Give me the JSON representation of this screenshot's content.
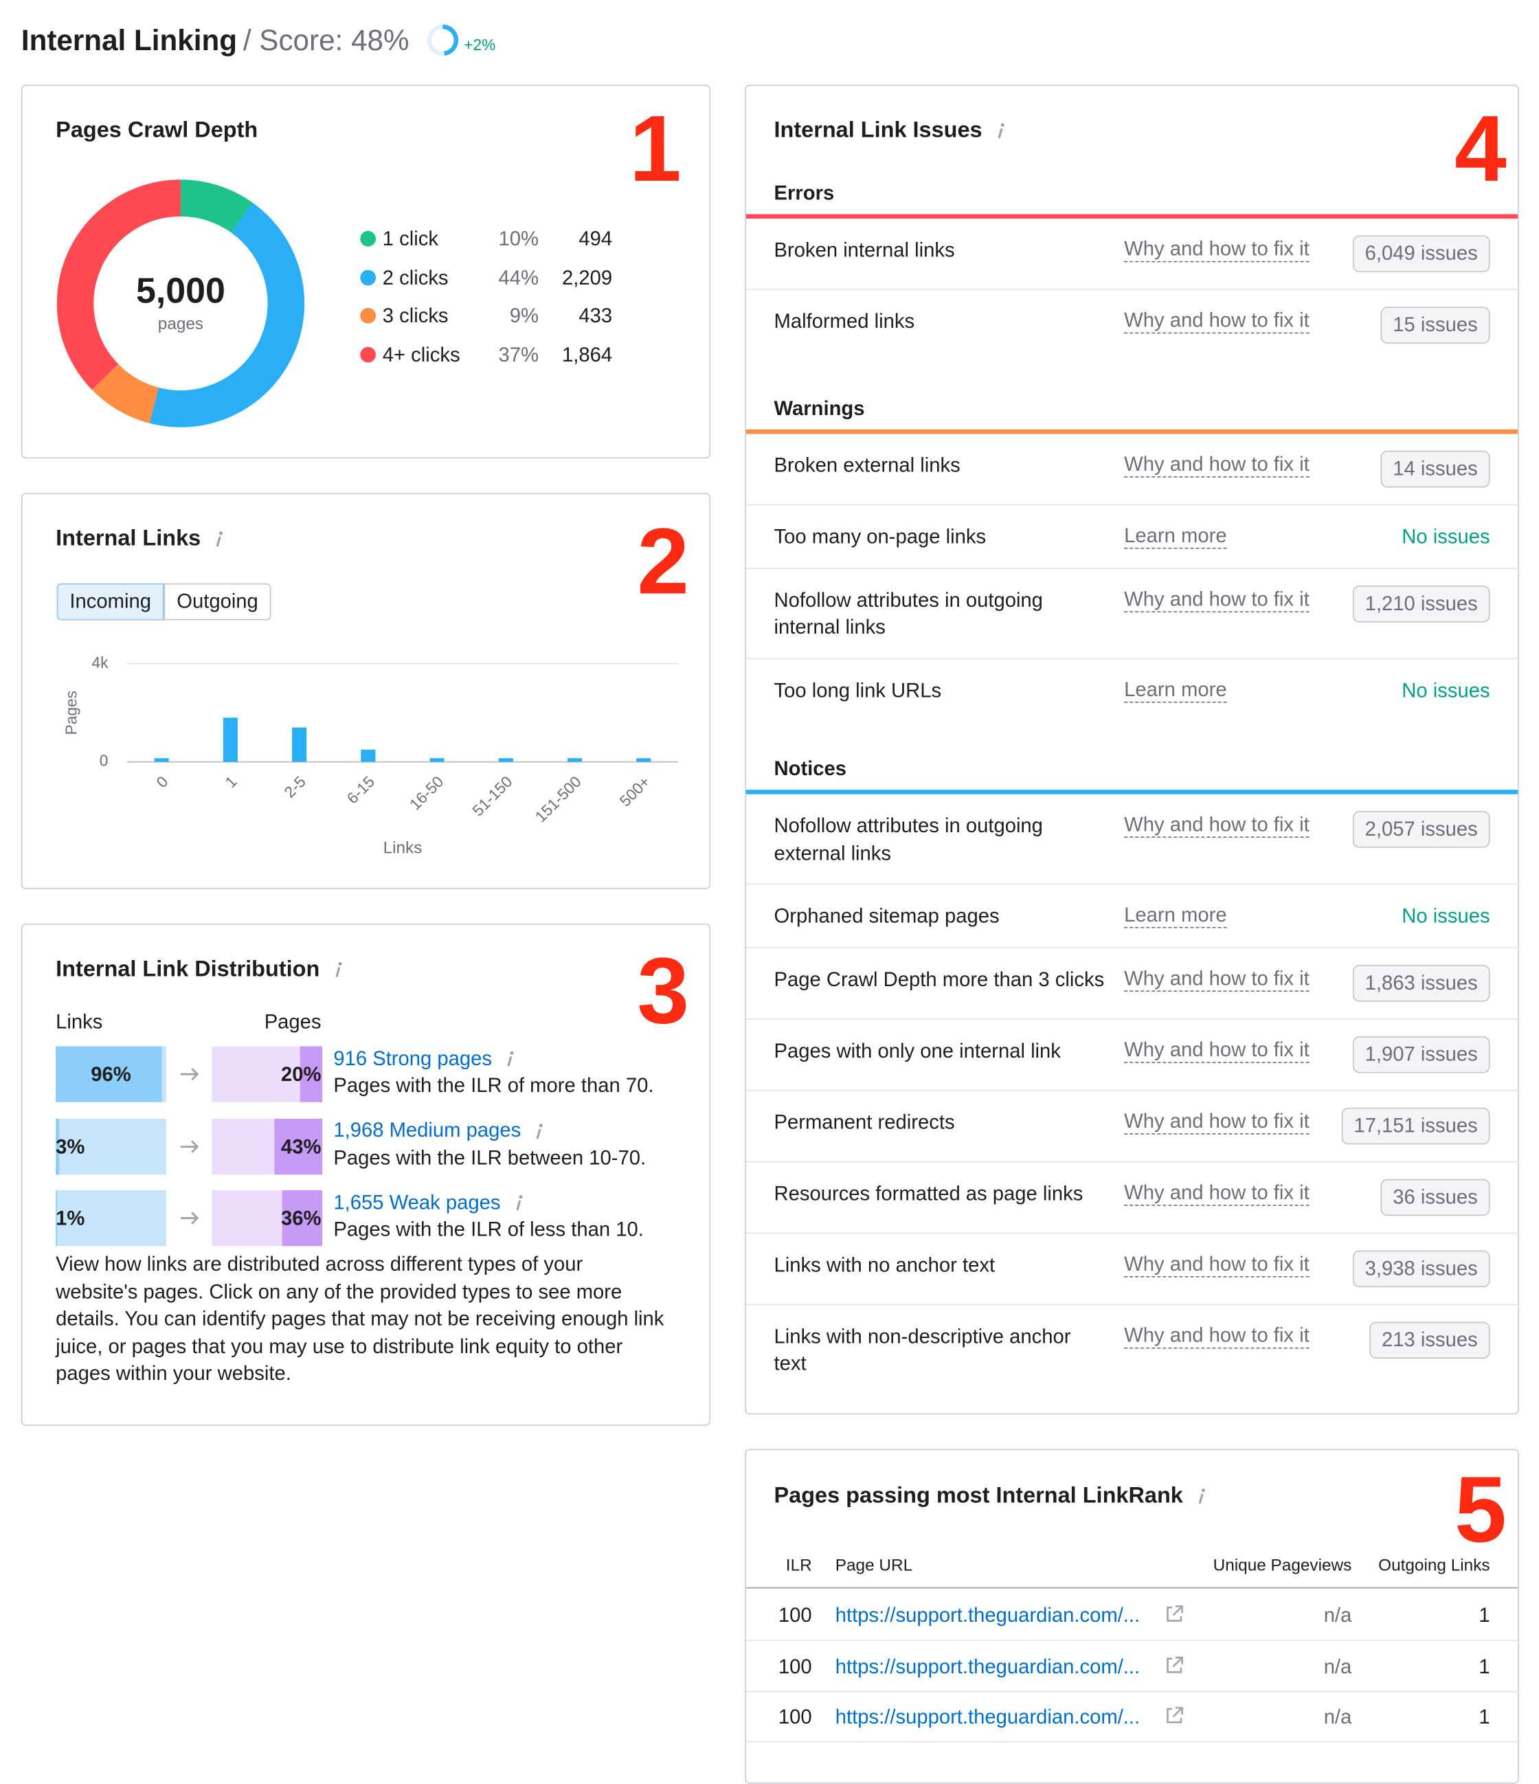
{
  "header": {
    "title": "Internal Linking",
    "score": {
      "value": 48,
      "label": "/ Score: 48%"
    },
    "change": "+2%"
  },
  "crawl_depth": {
    "title": "Pages Crawl Depth",
    "marker": "1",
    "total": "5,000",
    "total_unit": "pages",
    "segments": [
      {
        "name": "1 click",
        "share": "10%",
        "pages": 494,
        "color": "#1ec28b"
      },
      {
        "name": "2 clicks",
        "share": "44%",
        "pages": {
          "value": 2209,
          "label": "2,209"
        },
        "color": "#2aaef5"
      },
      {
        "name": "3 clicks",
        "share": "9%",
        "pages": 433,
        "color": "#ff8d43"
      },
      {
        "name": "4+ clicks",
        "share": "37%",
        "pages": {
          "value": 1864,
          "label": "1,864"
        },
        "color": "#ff4953"
      }
    ]
  },
  "internal_links": {
    "title": "Internal Links",
    "marker": "2",
    "tabs": [
      "Incoming",
      "Outgoing"
    ],
    "active_tab": 0,
    "chart": {
      "type": "bar",
      "categories": [
        "0",
        "1",
        "2-5",
        "6-15",
        "16-50",
        "51-150",
        "151-500",
        "500+"
      ],
      "values": [
        150,
        1800,
        1400,
        500,
        150,
        150,
        150,
        150
      ],
      "color": "#2aaef5",
      "ylim": [
        0,
        4000
      ],
      "yticks": [
        0,
        {
          "value": 4000,
          "label": "4k"
        }
      ],
      "y_label": "Pages",
      "x_label": "Links"
    }
  },
  "link_distribution": {
    "title": "Internal Link Distribution",
    "marker": "3",
    "links_header": "Links",
    "pages_header": "Pages",
    "rows": [
      {
        "links_share": {
          "value": 96,
          "label": "96%"
        },
        "pages_share": {
          "value": 20,
          "label": "20%"
        },
        "group": "916 Strong pages",
        "description": "Pages with the ILR of more than 70."
      },
      {
        "links_share": {
          "value": 3,
          "label": "3%"
        },
        "pages_share": {
          "value": 43,
          "label": "43%"
        },
        "group": "1,968 Medium pages",
        "description": "Pages with the ILR between 10-70."
      },
      {
        "links_share": {
          "value": 1,
          "label": "1%"
        },
        "pages_share": {
          "value": 36,
          "label": "36%"
        },
        "group": "1,655 Weak pages",
        "description": "Pages with the ILR of less than 10."
      }
    ],
    "note": "View how links are distributed across different types of your website's pages. Click on any of the provided types to see more details. You can identify pages that may not be receiving enough link juice, or pages that you may use to distribute link equity to other pages within your website."
  },
  "link_issues": {
    "title": "Internal Link Issues",
    "marker": "4",
    "sections": [
      {
        "name": "Errors",
        "color": "#ff4953",
        "rows": [
          {
            "issue": "Broken internal links",
            "help": "Why and how to fix it",
            "status": "6,049 issues",
            "status_style": "badge"
          },
          {
            "issue": "Malformed links",
            "help": "Why and how to fix it",
            "status": "15 issues",
            "status_style": "badge"
          }
        ]
      },
      {
        "name": "Warnings",
        "color": "#ff8d43",
        "rows": [
          {
            "issue": "Broken external links",
            "help": "Why and how to fix it",
            "status": "14 issues",
            "status_style": "badge"
          },
          {
            "issue": "Too many on-page links",
            "help": "Learn more",
            "status": "No issues",
            "status_style": "plain"
          },
          {
            "issue": "Nofollow attributes in outgoing internal links",
            "help": "Why and how to fix it",
            "status": "1,210 issues",
            "status_style": "badge"
          },
          {
            "issue": "Too long link URLs",
            "help": "Learn more",
            "status": "No issues",
            "status_style": "plain"
          }
        ]
      },
      {
        "name": "Notices",
        "color": "#2aaef5",
        "rows": [
          {
            "issue": "Nofollow attributes in outgoing external links",
            "help": "Why and how to fix it",
            "status": "2,057 issues",
            "status_style": "badge"
          },
          {
            "issue": "Orphaned sitemap pages",
            "help": "Learn more",
            "status": "No issues",
            "status_style": "plain"
          },
          {
            "issue": "Page Crawl Depth more than 3 clicks",
            "help": "Why and how to fix it",
            "status": "1,863 issues",
            "status_style": "badge"
          },
          {
            "issue": "Pages with only one internal link",
            "help": "Why and how to fix it",
            "status": "1,907 issues",
            "status_style": "badge"
          },
          {
            "issue": "Permanent redirects",
            "help": "Why and how to fix it",
            "status": "17,151 issues",
            "status_style": "badge"
          },
          {
            "issue": "Resources formatted as page links",
            "help": "Why and how to fix it",
            "status": "36 issues",
            "status_style": "badge"
          },
          {
            "issue": "Links with no anchor text",
            "help": "Why and how to fix it",
            "status": "3,938 issues",
            "status_style": "badge"
          },
          {
            "issue": "Links with non-descriptive anchor text",
            "help": "Why and how to fix it",
            "status": "213 issues",
            "status_style": "badge"
          }
        ]
      }
    ]
  },
  "linkrank": {
    "title": "Pages passing most Internal LinkRank",
    "marker": "5",
    "columns": [
      "ILR",
      "Page URL",
      "Unique Pageviews",
      "Outgoing Links"
    ],
    "rows": [
      [
        100,
        "https://support.theguardian.com/...",
        "n/a",
        1
      ],
      [
        100,
        "https://support.theguardian.com/...",
        "n/a",
        1
      ],
      [
        100,
        "https://support.theguardian.com/...",
        "n/a",
        1
      ]
    ]
  }
}
